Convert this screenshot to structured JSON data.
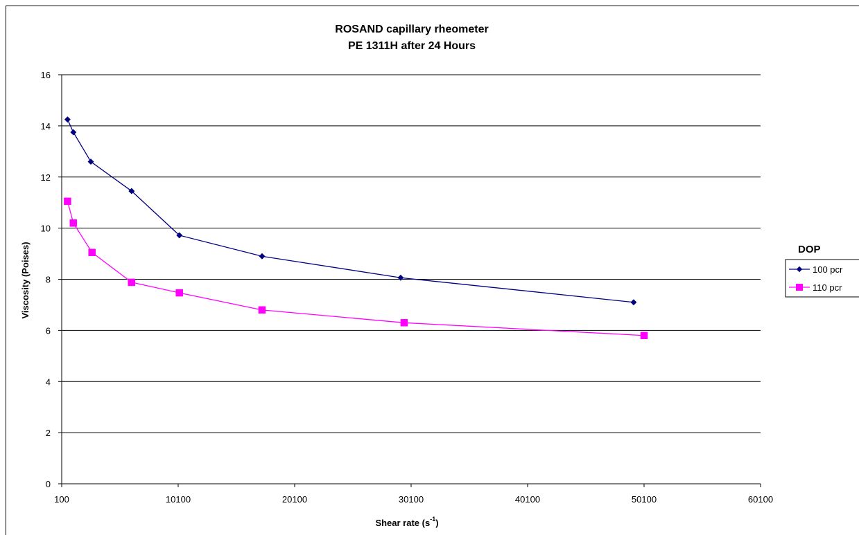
{
  "chart_data": {
    "type": "line",
    "title_lines": [
      "ROSAND capillary rheometer",
      "PE 1311H  after 24 Hours"
    ],
    "xlabel": "Shear rate (s",
    "xlabel_sup": "-1",
    "xlabel_end": ")",
    "ylabel": "Viscosity (Poises)",
    "xlim": [
      100,
      60100
    ],
    "ylim": [
      0,
      16
    ],
    "x_ticks": [
      100,
      10100,
      20100,
      30100,
      40100,
      50100,
      60100
    ],
    "y_ticks": [
      0,
      2,
      4,
      6,
      8,
      10,
      12,
      14,
      16
    ],
    "grid": "horizontal",
    "legend": {
      "title": "DOP",
      "position": "right"
    },
    "series": [
      {
        "name": "100 pcr",
        "color": "#000080",
        "marker": "diamond",
        "x": [
          600,
          1100,
          2600,
          6100,
          10200,
          17300,
          29200,
          49200
        ],
        "y": [
          14.25,
          13.75,
          12.6,
          11.45,
          9.72,
          8.9,
          8.06,
          7.1
        ]
      },
      {
        "name": "110 pcr",
        "color": "#ff00ff",
        "marker": "square",
        "x": [
          600,
          1100,
          2700,
          6100,
          10200,
          17300,
          29500,
          50100
        ],
        "y": [
          11.05,
          10.2,
          9.05,
          7.88,
          7.47,
          6.8,
          6.3,
          5.8
        ]
      }
    ]
  }
}
